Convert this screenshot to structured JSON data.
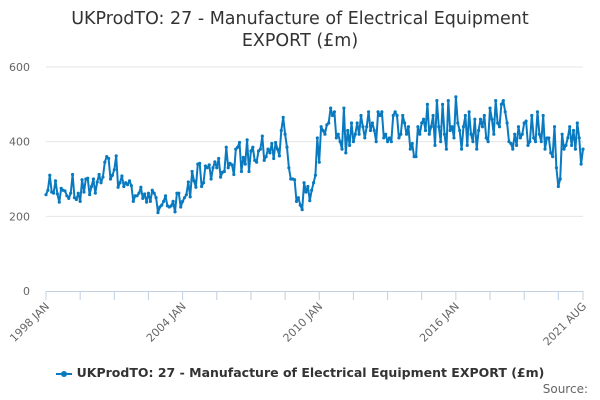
{
  "chart_data": {
    "type": "line",
    "title_line1": "UKProdTO: 27 - Manufacture of Electrical Equipment",
    "title_line2": "EXPORT (£m)",
    "start": "1998 JAN",
    "end": "2021 AUG",
    "frequency": "monthly",
    "ylim": [
      0,
      600
    ],
    "yticks": [
      "0",
      "200",
      "400",
      "600"
    ],
    "xtick_labels": [
      "1998 JAN",
      "2004 JAN",
      "2010 JAN",
      "2016 JAN",
      "2021 AUG"
    ],
    "color": "#0a7ac0",
    "grid": true,
    "legend_position": "bottom",
    "series": [
      {
        "name": "UKProdTO: 27 - Manufacture of Electrical Equipment EXPORT (£m)",
        "values": [
          258,
          270,
          310,
          265,
          262,
          295,
          260,
          238,
          275,
          270,
          268,
          255,
          248,
          262,
          312,
          250,
          245,
          262,
          240,
          298,
          265,
          300,
          302,
          258,
          280,
          300,
          262,
          292,
          312,
          290,
          305,
          345,
          360,
          355,
          300,
          310,
          325,
          362,
          278,
          290,
          308,
          280,
          290,
          285,
          295,
          282,
          240,
          255,
          255,
          262,
          278,
          248,
          260,
          238,
          262,
          240,
          270,
          262,
          250,
          210,
          225,
          230,
          240,
          255,
          228,
          225,
          228,
          240,
          212,
          262,
          262,
          225,
          240,
          250,
          258,
          292,
          252,
          320,
          295,
          278,
          340,
          342,
          280,
          290,
          335,
          330,
          338,
          300,
          330,
          346,
          330,
          355,
          305,
          318,
          320,
          385,
          330,
          342,
          338,
          312,
          380,
          385,
          398,
          320,
          358,
          340,
          405,
          320,
          375,
          385,
          350,
          345,
          375,
          380,
          415,
          350,
          360,
          380,
          370,
          395,
          355,
          398,
          380,
          362,
          430,
          465,
          420,
          385,
          330,
          300,
          300,
          298,
          240,
          250,
          230,
          218,
          290,
          265,
          280,
          242,
          270,
          290,
          310,
          410,
          345,
          440,
          430,
          420,
          445,
          450,
          490,
          470,
          480,
          410,
          420,
          400,
          380,
          490,
          370,
          430,
          390,
          450,
          400,
          420,
          450,
          420,
          470,
          440,
          410,
          440,
          480,
          430,
          450,
          430,
          400,
          480,
          470,
          480,
          410,
          420,
          400,
          410,
          400,
          470,
          480,
          470,
          410,
          420,
          470,
          450,
          420,
          440,
          380,
          395,
          360,
          360,
          440,
          420,
          450,
          460,
          430,
          500,
          420,
          440,
          470,
          390,
          510,
          440,
          400,
          500,
          420,
          380,
          510,
          430,
          440,
          410,
          520,
          450,
          430,
          380,
          440,
          470,
          390,
          480,
          420,
          400,
          460,
          380,
          430,
          460,
          440,
          470,
          410,
          400,
          490,
          460,
          420,
          510,
          450,
          440,
          500,
          510,
          480,
          450,
          400,
          395,
          380,
          420,
          390,
          440,
          410,
          420,
          450,
          455,
          390,
          400,
          470,
          410,
          400,
          480,
          420,
          400,
          470,
          380,
          410,
          410,
          370,
          360,
          440,
          330,
          280,
          300,
          420,
          380,
          390,
          410,
          440,
          390,
          430,
          380,
          450,
          410,
          340,
          380
        ]
      }
    ]
  },
  "source_label": "Source:"
}
